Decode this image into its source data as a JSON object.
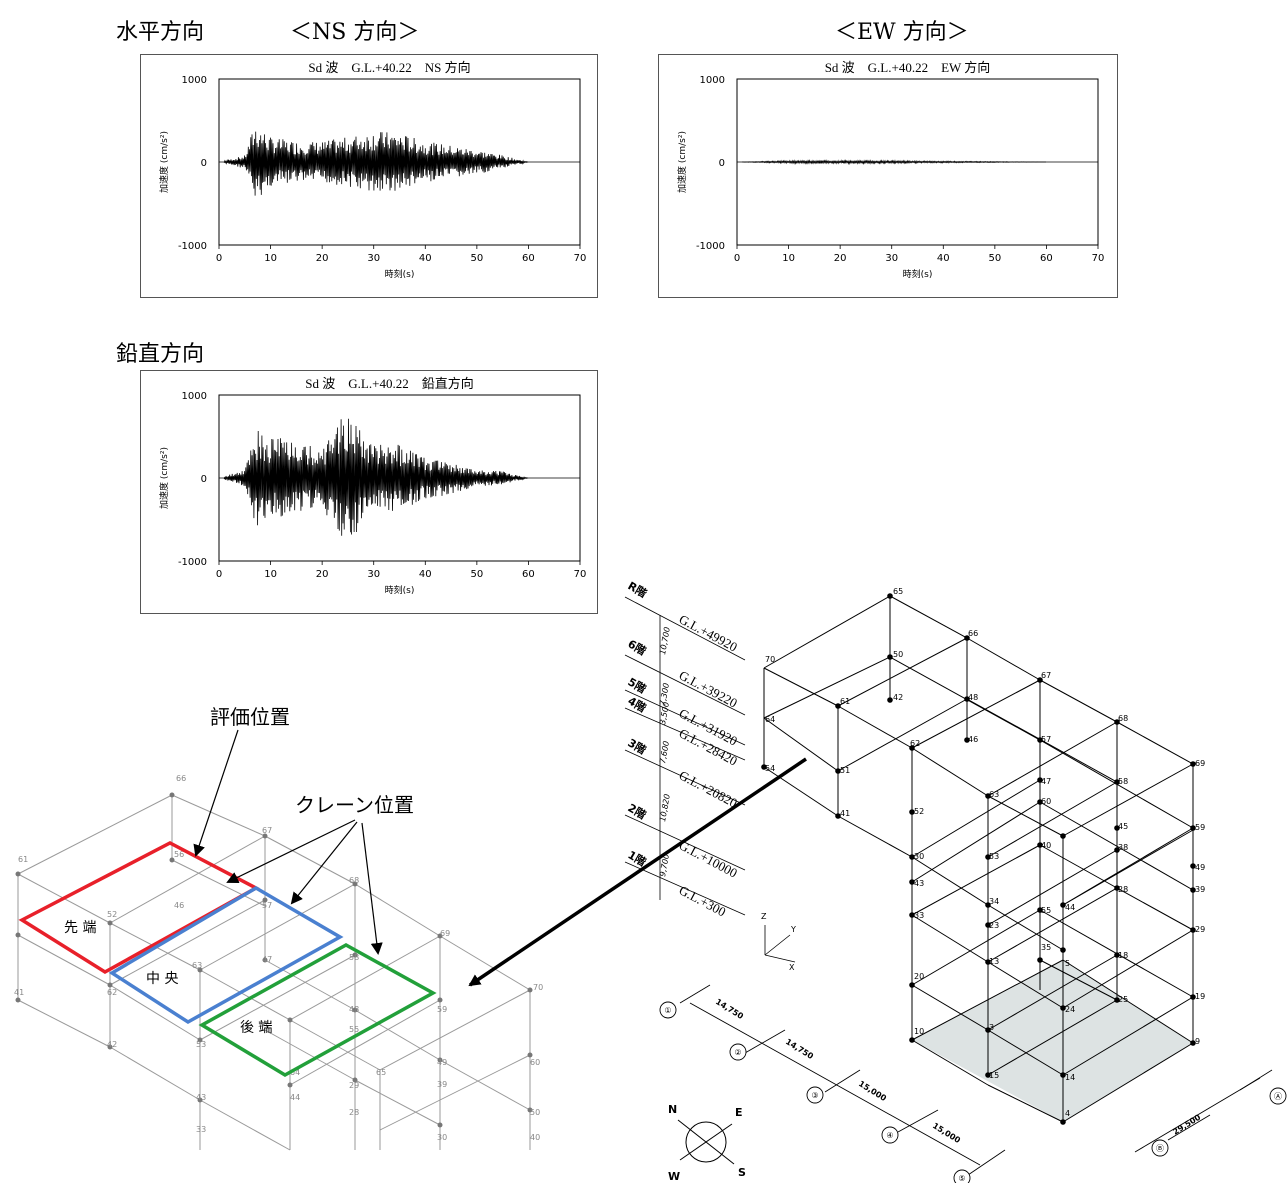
{
  "headings": {
    "horizontal": "水平方向",
    "ns": "＜NS 方向＞",
    "ew": "＜EW 方向＞",
    "vertical": "鉛直方向"
  },
  "charts": [
    {
      "id": "ns",
      "title": "Sd 波　G.L.+40.22　NS 方向",
      "ylabel": "加速度 (cm/s²)",
      "xlabel": "時刻(s)",
      "amp": 0.36
    },
    {
      "id": "ew",
      "title": "Sd 波　G.L.+40.22　EW 方向",
      "ylabel": "加速度 (cm/s²)",
      "xlabel": "時刻(s)",
      "amp": 0.02
    },
    {
      "id": "ud",
      "title": "Sd 波　G.L.+40.22　鉛直方向",
      "ylabel": "加速度 (cm/s²)",
      "xlabel": "時刻(s)",
      "amp": 0.55
    }
  ],
  "chart_data": [
    {
      "type": "line",
      "title": "Sd 波　G.L.+40.22　NS 方向",
      "xlabel": "時刻(s)",
      "ylabel": "加速度 (cm/s²)",
      "xlim": [
        0,
        70
      ],
      "ylim": [
        -1000,
        1000
      ],
      "xticks": [
        0,
        10,
        20,
        30,
        40,
        50,
        60,
        70
      ],
      "yticks": [
        1000,
        0,
        -1000
      ],
      "x": [
        0,
        5,
        7,
        10,
        15,
        20,
        25,
        30,
        35,
        40,
        45,
        50,
        55,
        60
      ],
      "y": [
        0,
        80,
        480,
        -300,
        250,
        -250,
        300,
        380,
        -350,
        250,
        -200,
        150,
        -80,
        0
      ]
    },
    {
      "type": "line",
      "title": "Sd 波　G.L.+40.22　EW 方向",
      "xlabel": "時刻(s)",
      "ylabel": "加速度 (cm/s²)",
      "xlim": [
        0,
        70
      ],
      "ylim": [
        -1000,
        1000
      ],
      "xticks": [
        0,
        10,
        20,
        30,
        40,
        50,
        60,
        70
      ],
      "yticks": [
        1000,
        0,
        -1000
      ],
      "x": [
        0,
        10,
        20,
        30,
        40,
        50,
        60
      ],
      "y": [
        0,
        15,
        -20,
        15,
        -10,
        5,
        0
      ]
    },
    {
      "type": "line",
      "title": "Sd 波　G.L.+40.22　鉛直方向",
      "xlabel": "時刻(s)",
      "ylabel": "加速度 (cm/s²)",
      "xlim": [
        0,
        70
      ],
      "ylim": [
        -1000,
        1000
      ],
      "xticks": [
        0,
        10,
        20,
        30,
        40,
        50,
        60,
        70
      ],
      "yticks": [
        1000,
        0,
        -1000
      ],
      "x": [
        0,
        5,
        7,
        10,
        15,
        20,
        23,
        25,
        30,
        35,
        40,
        45,
        50,
        55,
        60
      ],
      "y": [
        0,
        100,
        600,
        -500,
        450,
        -350,
        750,
        -800,
        400,
        -400,
        250,
        -200,
        100,
        -80,
        0
      ]
    }
  ],
  "callouts": {
    "eval": "評価位置",
    "crane": "クレーン位置",
    "front": "先 端",
    "center": "中 央",
    "rear": "後 端"
  },
  "floors": [
    "R階",
    "6階",
    "5階",
    "4階",
    "3階",
    "2階",
    "1階"
  ],
  "levels": [
    "G.L.+49920",
    "G.L.+39220",
    "G.L.+31920",
    "G.L.+28420",
    "G.L.+20820",
    "G.L.+10000",
    "G.L.+300"
  ],
  "story_heights": [
    "10,700",
    "7,300",
    "3,500",
    "7,600",
    "10,820",
    "9,700"
  ],
  "spans": [
    "14,750",
    "14,750",
    "15,000",
    "15,000",
    "29,500"
  ],
  "grid_axes": [
    "①",
    "②",
    "③",
    "④",
    "⑤",
    "Ⓐ",
    "Ⓑ"
  ],
  "axes": {
    "z": "Z",
    "y": "Y",
    "x": "X"
  },
  "compass": {
    "n": "N",
    "e": "E",
    "s": "S",
    "w": "W"
  },
  "frame_nodes": [
    "65",
    "66",
    "67",
    "68",
    "69",
    "70",
    "61",
    "62",
    "63",
    "64",
    "51",
    "52",
    "53",
    "54",
    "41",
    "42",
    "46",
    "47",
    "48",
    "57",
    "58",
    "59",
    "60",
    "38",
    "39",
    "40",
    "28",
    "29",
    "30",
    "43",
    "33",
    "23",
    "34",
    "44",
    "55",
    "18",
    "19",
    "20",
    "13",
    "24",
    "25",
    "9",
    "10",
    "3",
    "14",
    "15",
    "4",
    "5",
    "35",
    "45",
    "49",
    "50",
    "56"
  ],
  "zoom_nodes": [
    "66",
    "67",
    "61",
    "52",
    "56",
    "57",
    "46",
    "63",
    "47",
    "68",
    "62",
    "58",
    "69",
    "70",
    "41",
    "42",
    "53",
    "54",
    "48",
    "59",
    "60",
    "55",
    "43",
    "33",
    "49",
    "39",
    "50",
    "40",
    "64",
    "44",
    "29",
    "30",
    "28",
    "65"
  ]
}
